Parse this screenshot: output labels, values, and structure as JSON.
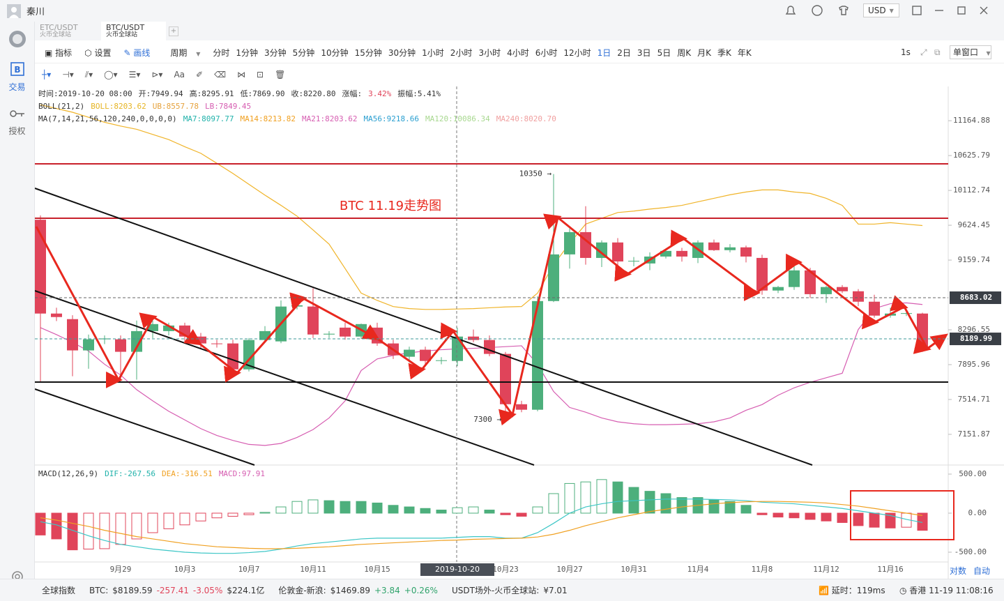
{
  "header": {
    "user": "秦川",
    "currency": "USD"
  },
  "tabs": [
    {
      "name": "ETC/USDT",
      "sub": "火币全球站"
    },
    {
      "name": "BTC/USDT",
      "sub": "火币全球站"
    }
  ],
  "sidebar": [
    "交易",
    "授权"
  ],
  "toolbar": {
    "tools": [
      "指标",
      "设置",
      "画线"
    ],
    "period": "周期",
    "intervals": [
      "分时",
      "1分钟",
      "3分钟",
      "5分钟",
      "10分钟",
      "15分钟",
      "30分钟",
      "1小时",
      "2小时",
      "3小时",
      "4小时",
      "6小时",
      "12小时",
      "1日",
      "2日",
      "3日",
      "5日",
      "周K",
      "月K",
      "季K",
      "年K"
    ],
    "active": "1日",
    "refresh": "1s",
    "window": "单窗口",
    "text_tool": "Aa"
  },
  "indicators": {
    "line1": [
      {
        "text": "时间:2019-10-20 08:00"
      },
      {
        "text": "开:7949.94"
      },
      {
        "text": "高:8295.91"
      },
      {
        "text": "低:7869.90"
      },
      {
        "text": "收:8220.80"
      },
      {
        "text": "涨幅:"
      },
      {
        "text": "3.42%",
        "color": "#e0445a"
      },
      {
        "text": "振幅:5.41%"
      }
    ],
    "boll": [
      {
        "text": "BOLL(21,2)",
        "color": "#333333"
      },
      {
        "text": "BOLL:8203.62",
        "color": "#e6b422"
      },
      {
        "text": "UB:8557.78",
        "color": "#e6a23c"
      },
      {
        "text": "LB:7849.45",
        "color": "#d65db1"
      }
    ],
    "ma": [
      {
        "text": "MA(7,14,21,56,120,240,0,0,0,0)",
        "color": "#333333"
      },
      {
        "text": "MA7:8097.77",
        "color": "#20b2aa"
      },
      {
        "text": "MA14:8213.82",
        "color": "#f0a020"
      },
      {
        "text": "MA21:8203.62",
        "color": "#d65db1"
      },
      {
        "text": "MA56:9218.66",
        "color": "#2a9fd0"
      },
      {
        "text": "MA120:10086.34",
        "color": "#a8d890"
      },
      {
        "text": "MA240:8020.70",
        "color": "#f0a0a0"
      }
    ],
    "macd": [
      {
        "text": "MACD(12,26,9)",
        "color": "#333333"
      },
      {
        "text": "DIF:-267.56",
        "color": "#20b2aa"
      },
      {
        "text": "DEA:-316.51",
        "color": "#f0a020"
      },
      {
        "text": "MACD:97.91",
        "color": "#d65db1"
      }
    ]
  },
  "chart_data": {
    "type": "candlestick",
    "log_scale": true,
    "categories": [
      null,
      null,
      null,
      null,
      null,
      "9月29",
      null,
      null,
      null,
      "10月3",
      null,
      null,
      null,
      "10月7",
      null,
      null,
      null,
      "10月11",
      null,
      null,
      null,
      "10月15",
      null,
      null,
      null,
      null,
      null,
      null,
      null,
      "10月23",
      null,
      null,
      null,
      "10月27",
      null,
      null,
      null,
      "10月31",
      null,
      null,
      null,
      "11月4",
      null,
      null,
      null,
      "11月8",
      null,
      null,
      null,
      "11月12",
      null,
      null,
      null,
      "11月16",
      null,
      null
    ],
    "candles": [
      [
        9700,
        9760,
        7706,
        8490
      ],
      [
        8490,
        8560,
        8400,
        8448
      ],
      [
        8423,
        8470,
        7767,
        8057
      ],
      [
        8057,
        8240,
        7850,
        8185
      ],
      [
        8185,
        8230,
        8130,
        8195
      ],
      [
        8185,
        8230,
        7729,
        8041
      ],
      [
        8041,
        8406,
        7729,
        8281
      ],
      [
        8281,
        8406,
        8200,
        8364
      ],
      [
        8281,
        8380,
        8230,
        8347
      ],
      [
        8347,
        8380,
        8150,
        8217
      ],
      [
        8217,
        8260,
        8080,
        8137
      ],
      [
        8137,
        8180,
        8090,
        8130
      ],
      [
        8137,
        8180,
        7800,
        7843
      ],
      [
        7843,
        8200,
        7820,
        8177
      ],
      [
        8177,
        8340,
        8150,
        8281
      ],
      [
        8161,
        8650,
        8140,
        8575
      ],
      [
        8575,
        8620,
        8540,
        8590
      ],
      [
        8575,
        8800,
        8200,
        8241
      ],
      [
        8241,
        8280,
        8200,
        8250
      ],
      [
        8322,
        8380,
        8180,
        8217
      ],
      [
        8217,
        8370,
        8190,
        8364
      ],
      [
        8322,
        8380,
        8110,
        8137
      ],
      [
        8137,
        8180,
        7960,
        8001
      ],
      [
        7985,
        8100,
        7920,
        8065
      ],
      [
        8065,
        8100,
        7900,
        7937
      ],
      [
        7937,
        7980,
        7900,
        7945
      ],
      [
        7937,
        8320,
        7880,
        8217
      ],
      [
        8217,
        8300,
        8150,
        8177
      ],
      [
        8177,
        8230,
        7990,
        8017
      ],
      [
        8017,
        8040,
        7300,
        7464
      ],
      [
        7464,
        7500,
        7380,
        7406
      ],
      [
        7406,
        8700,
        7390,
        8642
      ],
      [
        8642,
        10350,
        8630,
        9234
      ],
      [
        9234,
        9580,
        9050,
        9531
      ],
      [
        9531,
        9888,
        9100,
        9188
      ],
      [
        9188,
        9420,
        9070,
        9392
      ],
      [
        9392,
        9450,
        9050,
        9142
      ],
      [
        9142,
        9200,
        9080,
        9150
      ],
      [
        9116,
        9260,
        9030,
        9206
      ],
      [
        9206,
        9300,
        9180,
        9280
      ],
      [
        9280,
        9320,
        9140,
        9206
      ],
      [
        9188,
        9420,
        9120,
        9392
      ],
      [
        9392,
        9430,
        9280,
        9290
      ],
      [
        9290,
        9370,
        9260,
        9327
      ],
      [
        9327,
        9350,
        9130,
        9206
      ],
      [
        9188,
        9230,
        8720,
        8772
      ],
      [
        8772,
        8830,
        8740,
        8816
      ],
      [
        8816,
        9080,
        8780,
        9027
      ],
      [
        9027,
        9060,
        8680,
        8727
      ],
      [
        8727,
        8830,
        8620,
        8816
      ],
      [
        8816,
        8840,
        8740,
        8763
      ],
      [
        8763,
        8790,
        8580,
        8634
      ],
      [
        8634,
        8720,
        8440,
        8465
      ],
      [
        8465,
        8560,
        8440,
        8490
      ],
      [
        8490,
        8520,
        8460,
        8495
      ],
      [
        8490,
        8500,
        8040,
        8081
      ]
    ],
    "up_color": "#4daf7c",
    "down_color": "#e0445a",
    "bands": [
      {
        "color": "#f0b429",
        "values": [
          11420,
          11360,
          11300,
          11220,
          11140,
          11080,
          11030,
          10950,
          10870,
          10760,
          10660,
          10510,
          10360,
          10200,
          10045,
          9900,
          9750,
          9560,
          9370,
          9050,
          8740,
          8650,
          8575,
          8550,
          8540,
          8540,
          8545,
          8550,
          8560,
          8570,
          8575,
          8740,
          9100,
          9380,
          9640,
          9720,
          9800,
          9820,
          9848,
          9870,
          9900,
          9950,
          10000,
          10050,
          10090,
          10120,
          10120,
          10090,
          10070,
          10000,
          9900,
          9640,
          9640,
          9660,
          9640,
          9620
        ]
      },
      {
        "color": "#d65db1",
        "values": [
          8322,
          8240,
          8150,
          8050,
          7900,
          7780,
          7620,
          7500,
          7390,
          7300,
          7210,
          7140,
          7090,
          7050,
          7040,
          7060,
          7120,
          7200,
          7320,
          7500,
          7830,
          7960,
          8000,
          8030,
          8050,
          8065,
          8075,
          8081,
          8090,
          8100,
          8110,
          7900,
          7600,
          7430,
          7380,
          7320,
          7280,
          7260,
          7250,
          7250,
          7255,
          7260,
          7280,
          7320,
          7400,
          7460,
          7560,
          7640,
          7700,
          7750,
          7800,
          8300,
          8550,
          8610,
          8620,
          8600
        ]
      }
    ],
    "ylim": [
      6860,
      11710
    ],
    "yticks": [
      11164.88,
      10625.79,
      10112.74,
      9624.45,
      9159.74,
      8296.55,
      7895.96,
      7514.71,
      7151.87
    ],
    "price_lines": [
      {
        "value": 8683.02,
        "color": "#666666"
      },
      {
        "value": 8189.99,
        "color": "#3d9a9a"
      }
    ],
    "annotations": {
      "title": "BTC 11.19走势图",
      "high": "10350 →",
      "low": "7300 →"
    },
    "crosshair": "2019-10-20 08:00:00",
    "macd": {
      "ylim": [
        -616,
        607
      ],
      "yticks": [
        {
          "value": 500,
          "label": "500.00"
        },
        {
          "value": 0,
          "label": "0.00"
        },
        {
          "value": -500,
          "label": "-500.00"
        }
      ],
      "histogram": [
        -280,
        -330,
        -470,
        -460,
        -455,
        -400,
        -330,
        -250,
        -200,
        -150,
        -100,
        -60,
        -40,
        -20,
        10,
        80,
        150,
        170,
        160,
        150,
        150,
        130,
        100,
        80,
        60,
        40,
        70,
        80,
        40,
        -20,
        -40,
        80,
        250,
        380,
        400,
        430,
        400,
        330,
        280,
        250,
        200,
        200,
        170,
        150,
        100,
        -20,
        -50,
        -60,
        -80,
        -100,
        -120,
        -160,
        -180,
        -190,
        -180,
        -220
      ],
      "lines": [
        {
          "color": "#3cc6c6",
          "values": [
            -110,
            -150,
            -220,
            -290,
            -350,
            -400,
            -430,
            -460,
            -480,
            -500,
            -510,
            -515,
            -515,
            -505,
            -490,
            -460,
            -420,
            -390,
            -370,
            -350,
            -330,
            -320,
            -320,
            -320,
            -320,
            -320,
            -310,
            -300,
            -300,
            -320,
            -320,
            -250,
            -130,
            0,
            80,
            120,
            150,
            160,
            170,
            180,
            180,
            180,
            175,
            170,
            160,
            140,
            130,
            120,
            100,
            80,
            60,
            30,
            0,
            -30,
            -80,
            -120
          ]
        },
        {
          "color": "#f0a020",
          "values": [
            -60,
            -90,
            -130,
            -170,
            -220,
            -260,
            -300,
            -330,
            -360,
            -390,
            -410,
            -430,
            -440,
            -450,
            -455,
            -455,
            -450,
            -440,
            -430,
            -415,
            -400,
            -390,
            -380,
            -370,
            -360,
            -350,
            -345,
            -335,
            -330,
            -325,
            -320,
            -305,
            -270,
            -220,
            -160,
            -110,
            -60,
            -20,
            20,
            50,
            80,
            100,
            120,
            135,
            145,
            150,
            150,
            145,
            140,
            130,
            110,
            90,
            60,
            30,
            0,
            -30
          ]
        }
      ]
    },
    "axis_buttons": [
      "对数",
      "自动"
    ]
  },
  "footer": [
    {
      "text": "全球指数",
      "color": "#333333"
    },
    {
      "text": "BTC:",
      "color": "#333333"
    },
    {
      "text": "$8189.59",
      "color": "#333333"
    },
    {
      "text": "-257.41",
      "color": "#e0445a"
    },
    {
      "text": "-3.05%",
      "color": "#e0445a"
    },
    {
      "text": "$224.1亿",
      "color": "#333333"
    },
    {
      "text": "伦敦金-新浪:",
      "color": "#333333"
    },
    {
      "text": "$1469.89",
      "color": "#333333"
    },
    {
      "text": "+3.84",
      "color": "#2fa36b"
    },
    {
      "text": "+0.26%",
      "color": "#2fa36b"
    },
    {
      "text": "USDT场外-火币全球站:",
      "color": "#333333"
    },
    {
      "text": "¥7.01",
      "color": "#333333"
    }
  ],
  "status": {
    "latency": "延时：119ms",
    "clock": "香港 11-19 11:08:16"
  }
}
